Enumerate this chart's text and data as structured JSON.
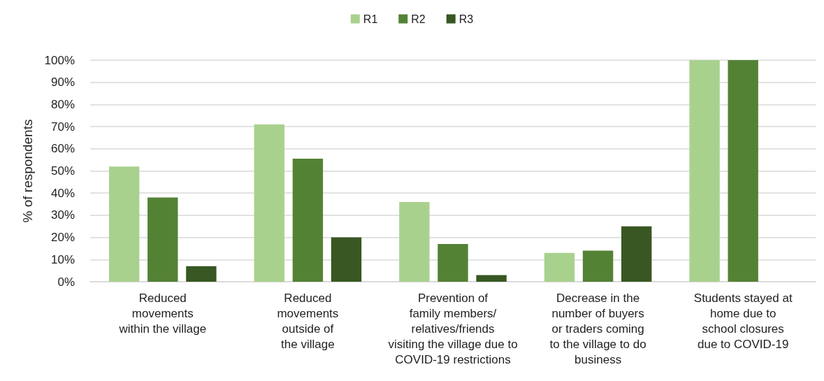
{
  "chart_data": {
    "type": "bar",
    "ylabel": "% of respondents",
    "categories": [
      "Reduced\nmovements\nwithin the village",
      "Reduced\nmovements\noutside of\nthe village",
      "Prevention of\nfamily members/\nrelatives/friends\nvisiting the village due to\nCOVID-19 restrictions",
      "Decrease in the\nnumber of buyers\nor traders coming\nto the village to do\nbusiness",
      "Students stayed at\nhome due to\nschool closures\ndue to COVID-19"
    ],
    "series": [
      {
        "name": "R1",
        "color": "#a9d18e",
        "values": [
          52,
          71,
          36,
          13,
          100
        ]
      },
      {
        "name": "R2",
        "color": "#548235",
        "values": [
          38,
          55.5,
          17,
          14,
          100
        ]
      },
      {
        "name": "R3",
        "color": "#385723",
        "values": [
          7,
          20,
          3,
          25,
          0
        ]
      }
    ],
    "ylim": [
      0,
      100
    ],
    "yticks": [
      {
        "value": 0,
        "label": "0%"
      },
      {
        "value": 10,
        "label": "10%"
      },
      {
        "value": 20,
        "label": "20%"
      },
      {
        "value": 30,
        "label": "30%"
      },
      {
        "value": 40,
        "label": "40%"
      },
      {
        "value": 50,
        "label": "50%"
      },
      {
        "value": 60,
        "label": "60%"
      },
      {
        "value": 70,
        "label": "70%"
      },
      {
        "value": 80,
        "label": "80%"
      },
      {
        "value": 90,
        "label": "90%"
      },
      {
        "value": 100,
        "label": "100%"
      }
    ],
    "grid": "y",
    "legend": "top"
  }
}
